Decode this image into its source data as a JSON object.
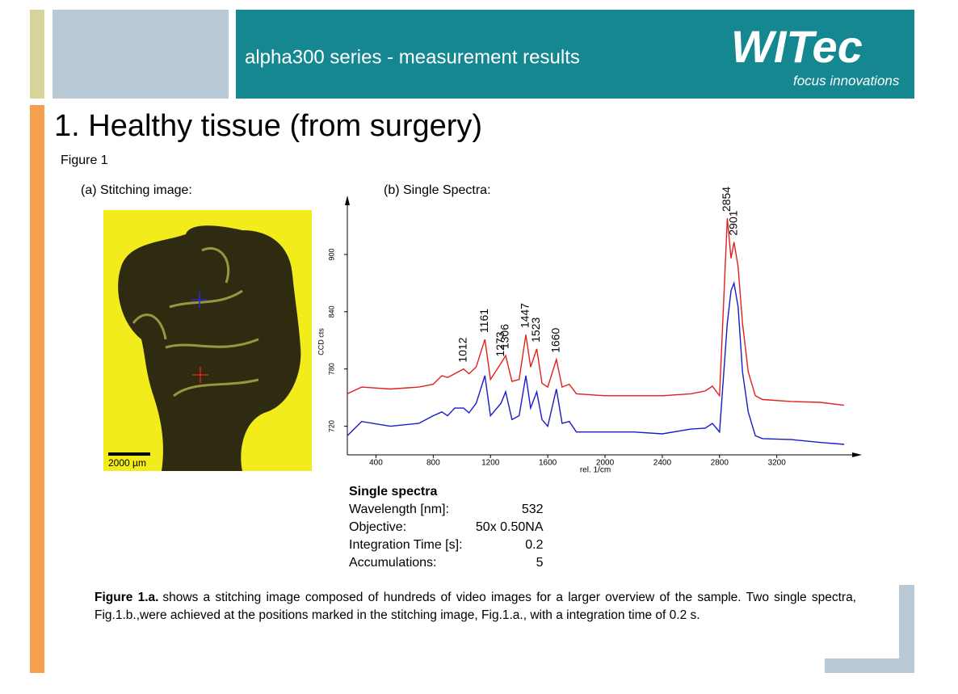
{
  "header": {
    "title": "alpha300 series - measurement results",
    "logo": "WITec",
    "tagline": "focus innovations"
  },
  "section_title": "1. Healthy tissue (from surgery)",
  "figure_label": "Figure 1",
  "panel_a": {
    "title": "(a) Stitching image:",
    "scale_bar": "2000 µm"
  },
  "chart_data": {
    "type": "line",
    "title": "(b) Single Spectra:",
    "x_label": "rel. 1/cm",
    "y_label": "CCD cts",
    "x": [
      200,
      300,
      500,
      700,
      800,
      860,
      900,
      950,
      1012,
      1050,
      1100,
      1161,
      1200,
      1273,
      1306,
      1350,
      1400,
      1447,
      1480,
      1523,
      1560,
      1600,
      1660,
      1700,
      1750,
      1800,
      2000,
      2200,
      2400,
      2600,
      2700,
      2750,
      2800,
      2854,
      2880,
      2901,
      2930,
      2960,
      3000,
      3050,
      3100,
      3300,
      3500,
      3670
    ],
    "series": [
      {
        "color": "#e0201b",
        "values": [
          754,
          761,
          759,
          761,
          764,
          773,
          771,
          775,
          780,
          775,
          782,
          811,
          769,
          786,
          794,
          767,
          769,
          816,
          782,
          801,
          765,
          761,
          790,
          761,
          764,
          754,
          752,
          752,
          752,
          754,
          757,
          762,
          752,
          938,
          896,
          913,
          887,
          828,
          777,
          752,
          748,
          746,
          745,
          742
        ]
      },
      {
        "color": "#1a1ac8",
        "values": [
          710,
          725,
          720,
          723,
          731,
          735,
          731,
          739,
          739,
          734,
          744,
          773,
          731,
          744,
          756,
          727,
          731,
          773,
          739,
          756,
          727,
          720,
          759,
          723,
          725,
          714,
          714,
          714,
          712,
          717,
          718,
          723,
          714,
          828,
          862,
          870,
          845,
          777,
          735,
          710,
          707,
          706,
          703,
          701
        ]
      }
    ],
    "xlim": [
      200,
      3670
    ],
    "ylim": [
      690,
      955
    ],
    "xticks": [
      400,
      800,
      1200,
      1600,
      2000,
      2400,
      2800,
      3200
    ],
    "yticks": [
      720,
      780,
      840,
      900
    ],
    "peak_labels": [
      1012,
      1161,
      1273,
      1306,
      1447,
      1523,
      1660,
      2854,
      2901
    ]
  },
  "table": {
    "title": "Single spectra",
    "rows": [
      [
        "Wavelength [nm]:",
        "532"
      ],
      [
        "Objective:",
        "50x 0.50NA"
      ],
      [
        "Integration Time [s]:",
        "0.2"
      ],
      [
        "Accumulations:",
        "5"
      ]
    ]
  },
  "caption": {
    "lead": "Figure 1.a.",
    "text": "shows a stitching image composed of hundreds of video images for a larger overview of the sample. Two single spectra, Fig.1.b.,were achieved at the positions marked in the stitching image, Fig.1.a., with a integration time of 0.2 s."
  }
}
